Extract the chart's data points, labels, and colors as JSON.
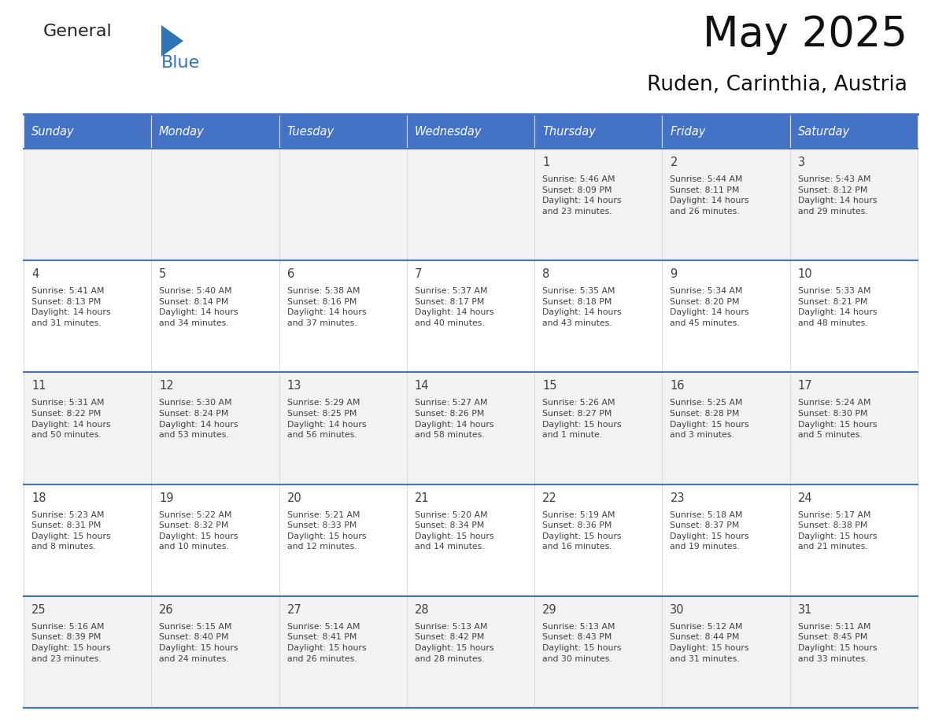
{
  "title": "May 2025",
  "subtitle": "Ruden, Carinthia, Austria",
  "days_of_week": [
    "Sunday",
    "Monday",
    "Tuesday",
    "Wednesday",
    "Thursday",
    "Friday",
    "Saturday"
  ],
  "header_bg": "#4472C4",
  "header_text_color": "#FFFFFF",
  "row_bg_odd": "#F2F2F2",
  "row_bg_even": "#FFFFFF",
  "cell_text_color": "#404040",
  "separator_color": "#4472C4",
  "calendar_data": [
    [
      "",
      "",
      "",
      "",
      "1\nSunrise: 5:46 AM\nSunset: 8:09 PM\nDaylight: 14 hours\nand 23 minutes.",
      "2\nSunrise: 5:44 AM\nSunset: 8:11 PM\nDaylight: 14 hours\nand 26 minutes.",
      "3\nSunrise: 5:43 AM\nSunset: 8:12 PM\nDaylight: 14 hours\nand 29 minutes."
    ],
    [
      "4\nSunrise: 5:41 AM\nSunset: 8:13 PM\nDaylight: 14 hours\nand 31 minutes.",
      "5\nSunrise: 5:40 AM\nSunset: 8:14 PM\nDaylight: 14 hours\nand 34 minutes.",
      "6\nSunrise: 5:38 AM\nSunset: 8:16 PM\nDaylight: 14 hours\nand 37 minutes.",
      "7\nSunrise: 5:37 AM\nSunset: 8:17 PM\nDaylight: 14 hours\nand 40 minutes.",
      "8\nSunrise: 5:35 AM\nSunset: 8:18 PM\nDaylight: 14 hours\nand 43 minutes.",
      "9\nSunrise: 5:34 AM\nSunset: 8:20 PM\nDaylight: 14 hours\nand 45 minutes.",
      "10\nSunrise: 5:33 AM\nSunset: 8:21 PM\nDaylight: 14 hours\nand 48 minutes."
    ],
    [
      "11\nSunrise: 5:31 AM\nSunset: 8:22 PM\nDaylight: 14 hours\nand 50 minutes.",
      "12\nSunrise: 5:30 AM\nSunset: 8:24 PM\nDaylight: 14 hours\nand 53 minutes.",
      "13\nSunrise: 5:29 AM\nSunset: 8:25 PM\nDaylight: 14 hours\nand 56 minutes.",
      "14\nSunrise: 5:27 AM\nSunset: 8:26 PM\nDaylight: 14 hours\nand 58 minutes.",
      "15\nSunrise: 5:26 AM\nSunset: 8:27 PM\nDaylight: 15 hours\nand 1 minute.",
      "16\nSunrise: 5:25 AM\nSunset: 8:28 PM\nDaylight: 15 hours\nand 3 minutes.",
      "17\nSunrise: 5:24 AM\nSunset: 8:30 PM\nDaylight: 15 hours\nand 5 minutes."
    ],
    [
      "18\nSunrise: 5:23 AM\nSunset: 8:31 PM\nDaylight: 15 hours\nand 8 minutes.",
      "19\nSunrise: 5:22 AM\nSunset: 8:32 PM\nDaylight: 15 hours\nand 10 minutes.",
      "20\nSunrise: 5:21 AM\nSunset: 8:33 PM\nDaylight: 15 hours\nand 12 minutes.",
      "21\nSunrise: 5:20 AM\nSunset: 8:34 PM\nDaylight: 15 hours\nand 14 minutes.",
      "22\nSunrise: 5:19 AM\nSunset: 8:36 PM\nDaylight: 15 hours\nand 16 minutes.",
      "23\nSunrise: 5:18 AM\nSunset: 8:37 PM\nDaylight: 15 hours\nand 19 minutes.",
      "24\nSunrise: 5:17 AM\nSunset: 8:38 PM\nDaylight: 15 hours\nand 21 minutes."
    ],
    [
      "25\nSunrise: 5:16 AM\nSunset: 8:39 PM\nDaylight: 15 hours\nand 23 minutes.",
      "26\nSunrise: 5:15 AM\nSunset: 8:40 PM\nDaylight: 15 hours\nand 24 minutes.",
      "27\nSunrise: 5:14 AM\nSunset: 8:41 PM\nDaylight: 15 hours\nand 26 minutes.",
      "28\nSunrise: 5:13 AM\nSunset: 8:42 PM\nDaylight: 15 hours\nand 28 minutes.",
      "29\nSunrise: 5:13 AM\nSunset: 8:43 PM\nDaylight: 15 hours\nand 30 minutes.",
      "30\nSunrise: 5:12 AM\nSunset: 8:44 PM\nDaylight: 15 hours\nand 31 minutes.",
      "31\nSunrise: 5:11 AM\nSunset: 8:45 PM\nDaylight: 15 hours\nand 33 minutes."
    ]
  ],
  "logo_color_general": "#222222",
  "logo_color_blue": "#2E75B6",
  "logo_triangle_color": "#2E75B6",
  "fig_width": 11.88,
  "fig_height": 9.18,
  "dpi": 100
}
